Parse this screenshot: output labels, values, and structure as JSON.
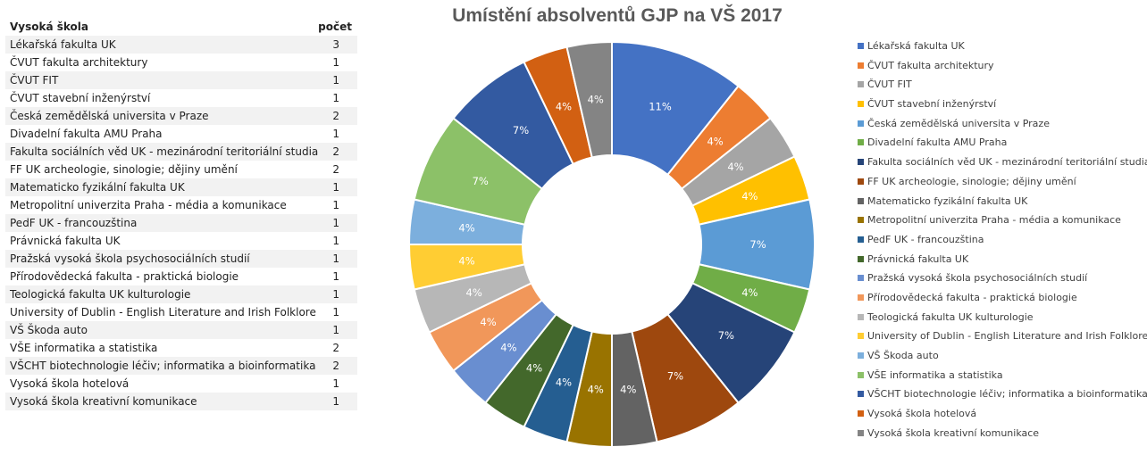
{
  "table": {
    "header_name": "Vysoká škola",
    "header_count": "počet",
    "rows": [
      {
        "name": "Lékařská fakulta UK",
        "count": "3"
      },
      {
        "name": "ČVUT fakulta architektury",
        "count": "1"
      },
      {
        "name": "ČVUT FIT",
        "count": "1"
      },
      {
        "name": "ČVUT stavební inženýrství",
        "count": "1"
      },
      {
        "name": "Česká zemědělská universita v Praze",
        "count": "2"
      },
      {
        "name": "Divadelní fakulta AMU Praha",
        "count": "1"
      },
      {
        "name": "Fakulta sociálních věd UK - mezinárodní teritoriální studia",
        "count": "2"
      },
      {
        "name": "FF UK archeologie, sinologie; dějiny umění",
        "count": "2"
      },
      {
        "name": "Matematicko fyzikální fakulta UK",
        "count": "1"
      },
      {
        "name": "Metropolitní univerzita Praha - média a komunikace",
        "count": "1"
      },
      {
        "name": "PedF UK - francouzština",
        "count": "1"
      },
      {
        "name": "Právnická fakulta UK",
        "count": "1"
      },
      {
        "name": "Pražská vysoká škola psychosociálních studií",
        "count": "1"
      },
      {
        "name": "Přírodovědecká fakulta - praktická biologie",
        "count": "1"
      },
      {
        "name": "Teologická fakulta UK kulturologie",
        "count": "1"
      },
      {
        "name": "University of Dublin - English Literature and Irish Folklore",
        "count": "1"
      },
      {
        "name": "VŠ Škoda auto",
        "count": "1"
      },
      {
        "name": "VŠE informatika a statistika",
        "count": "2"
      },
      {
        "name": "VŠCHT biotechnologie léčiv; informatika a bioinformatika",
        "count": "2"
      },
      {
        "name": "Vysoká škola hotelová",
        "count": "1"
      },
      {
        "name": "Vysoká škola kreativní komunikace",
        "count": "1"
      }
    ]
  },
  "chart_data": {
    "type": "pie",
    "style": "doughnut",
    "title": "Umístění absolventů GJP na VŠ 2017",
    "legend_position": "right",
    "categories": [
      "Lékařská fakulta UK",
      "ČVUT fakulta architektury",
      "ČVUT FIT",
      "ČVUT stavební inženýrství",
      "Česká zemědělská universita v Praze",
      "Divadelní fakulta AMU Praha",
      "Fakulta sociálních věd UK - mezinárodní teritoriální studia",
      "FF UK archeologie, sinologie; dějiny umění",
      "Matematicko fyzikální fakulta UK",
      "Metropolitní univerzita Praha - média a komunikace",
      "PedF UK - francouzština",
      "Právnická fakulta UK",
      "Pražská vysoká škola psychosociálních studií",
      "Přírodovědecká fakulta - praktická biologie",
      "Teologická fakulta UK kulturologie",
      "University of Dublin - English Literature and Irish Folklore",
      "VŠ Škoda auto",
      "VŠE informatika a statistika",
      "VŠCHT biotechnologie léčiv; informatika a bioinformatika",
      "Vysoká škola hotelová",
      "Vysoká škola kreativní komunikace"
    ],
    "values": [
      3,
      1,
      1,
      1,
      2,
      1,
      2,
      2,
      1,
      1,
      1,
      1,
      1,
      1,
      1,
      1,
      1,
      2,
      2,
      1,
      1
    ],
    "labels": [
      "11%",
      "4%",
      "4%",
      "4%",
      "7%",
      "4%",
      "7%",
      "7%",
      "4%",
      "4%",
      "4%",
      "4%",
      "4%",
      "4%",
      "4%",
      "4%",
      "4%",
      "7%",
      "7%",
      "4%",
      "4%"
    ],
    "colors": [
      "#4472C4",
      "#ED7D31",
      "#A5A5A5",
      "#FFC000",
      "#5B9BD5",
      "#70AD47",
      "#264478",
      "#9E480E",
      "#636363",
      "#997300",
      "#255E91",
      "#43682B",
      "#698ED0",
      "#F1975A",
      "#B7B7B7",
      "#FFCD33",
      "#7CAFDD",
      "#8CC168",
      "#335AA1",
      "#D26012",
      "#848484"
    ]
  }
}
